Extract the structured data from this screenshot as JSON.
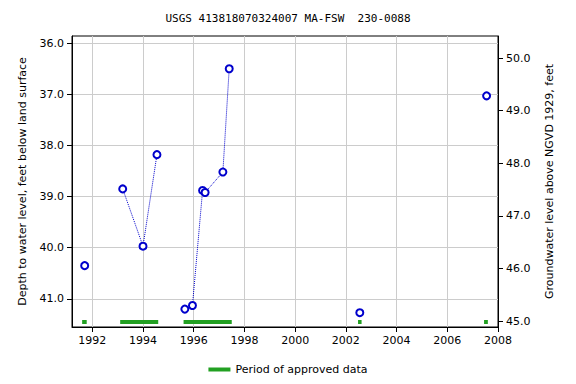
{
  "chart_data": {
    "type": "line",
    "title": "USGS 413818070324007 MA-FSW  230-0088",
    "y_label": "Depth to water level, feet below land surface",
    "y2_label": "Groundwater level above NGVD 1929, feet",
    "xlim": [
      1991.2,
      2008.0
    ],
    "xticks": [
      1992,
      1994,
      1996,
      1998,
      2000,
      2002,
      2004,
      2006,
      2008
    ],
    "ylim": [
      35.86,
      41.55
    ],
    "yticks": [
      {
        "value": 36,
        "label": "36.0"
      },
      {
        "value": 37,
        "label": "37.0"
      },
      {
        "value": 38,
        "label": "38.0"
      },
      {
        "value": 39,
        "label": "39.0"
      },
      {
        "value": 40,
        "label": "40.0"
      },
      {
        "value": 41,
        "label": "41.0"
      }
    ],
    "y2lim": [
      44.89,
      50.42
    ],
    "y2ticks": [
      {
        "value": 45,
        "label": "45.0"
      },
      {
        "value": 46,
        "label": "46.0"
      },
      {
        "value": 47,
        "label": "47.0"
      },
      {
        "value": 48,
        "label": "48.0"
      },
      {
        "value": 49,
        "label": "49.0"
      },
      {
        "value": 50,
        "label": "50.0"
      }
    ],
    "grid": true,
    "legend": "bottom",
    "series": [
      {
        "color": "#0000cc",
        "marker": "circle_open",
        "line_style": "dotted",
        "x": [
          1991.7
        ],
        "values": [
          40.35
        ]
      },
      {
        "color": "#0000cc",
        "marker": "circle_open",
        "line_style": "dotted",
        "x": [
          1993.2,
          1994.0,
          1994.55
        ],
        "values": [
          38.85,
          39.97,
          38.18
        ]
      },
      {
        "color": "#0000cc",
        "marker": "circle_open",
        "line_style": "dotted",
        "x": [
          1995.65,
          1995.95,
          1996.35,
          1996.45,
          1997.15,
          1997.4
        ],
        "values": [
          41.2,
          41.13,
          38.88,
          38.92,
          38.52,
          36.5
        ]
      },
      {
        "color": "#0000cc",
        "marker": "circle_open",
        "line_style": "dotted",
        "x": [
          2002.55
        ],
        "values": [
          41.27
        ]
      },
      {
        "color": "#0000cc",
        "marker": "circle_open",
        "line_style": "dotted",
        "x": [
          2007.55
        ],
        "values": [
          37.03
        ]
      }
    ],
    "approved_periods": {
      "name": "Period of approved data",
      "color": "#22a022",
      "ranges": [
        [
          1991.6,
          1991.78
        ],
        [
          1993.1,
          1994.6
        ],
        [
          1995.6,
          1997.5
        ],
        [
          2002.48,
          2002.62
        ],
        [
          2007.45,
          2007.6
        ]
      ]
    }
  }
}
